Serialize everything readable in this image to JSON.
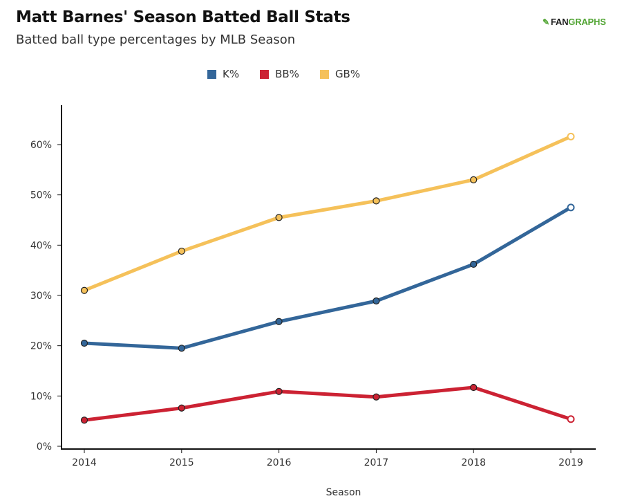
{
  "header": {
    "title": "Matt Barnes' Season Batted Ball Stats",
    "subtitle": "Batted ball type percentages by MLB Season",
    "logo_prefix": "FAN",
    "logo_suffix": "GRAPHS",
    "logo_icon": "fangraphs-batter-icon"
  },
  "chart_data": {
    "type": "line",
    "title": "Matt Barnes' Season Batted Ball Stats",
    "subtitle": "Batted ball type percentages by MLB Season",
    "xlabel": "Season",
    "ylabel": "",
    "x": [
      "2014",
      "2015",
      "2016",
      "2017",
      "2018",
      "2019"
    ],
    "ylim": [
      0,
      65
    ],
    "yticks": [
      0,
      10,
      20,
      30,
      40,
      50,
      60
    ],
    "ytick_labels": [
      "0%",
      "10%",
      "20%",
      "30%",
      "40%",
      "50%",
      "60%"
    ],
    "grid": false,
    "legend_position": "top-center",
    "series": [
      {
        "name": "K%",
        "color": "#336699",
        "values": [
          20.5,
          19.5,
          24.8,
          28.9,
          36.2,
          47.5
        ]
      },
      {
        "name": "BB%",
        "color": "#cc2233",
        "values": [
          5.2,
          7.6,
          10.9,
          9.8,
          11.7,
          5.4
        ]
      },
      {
        "name": "GB%",
        "color": "#f5c15a",
        "values": [
          31.0,
          38.8,
          45.5,
          48.8,
          53.0,
          61.6
        ]
      }
    ],
    "last_point_hollow": true
  }
}
